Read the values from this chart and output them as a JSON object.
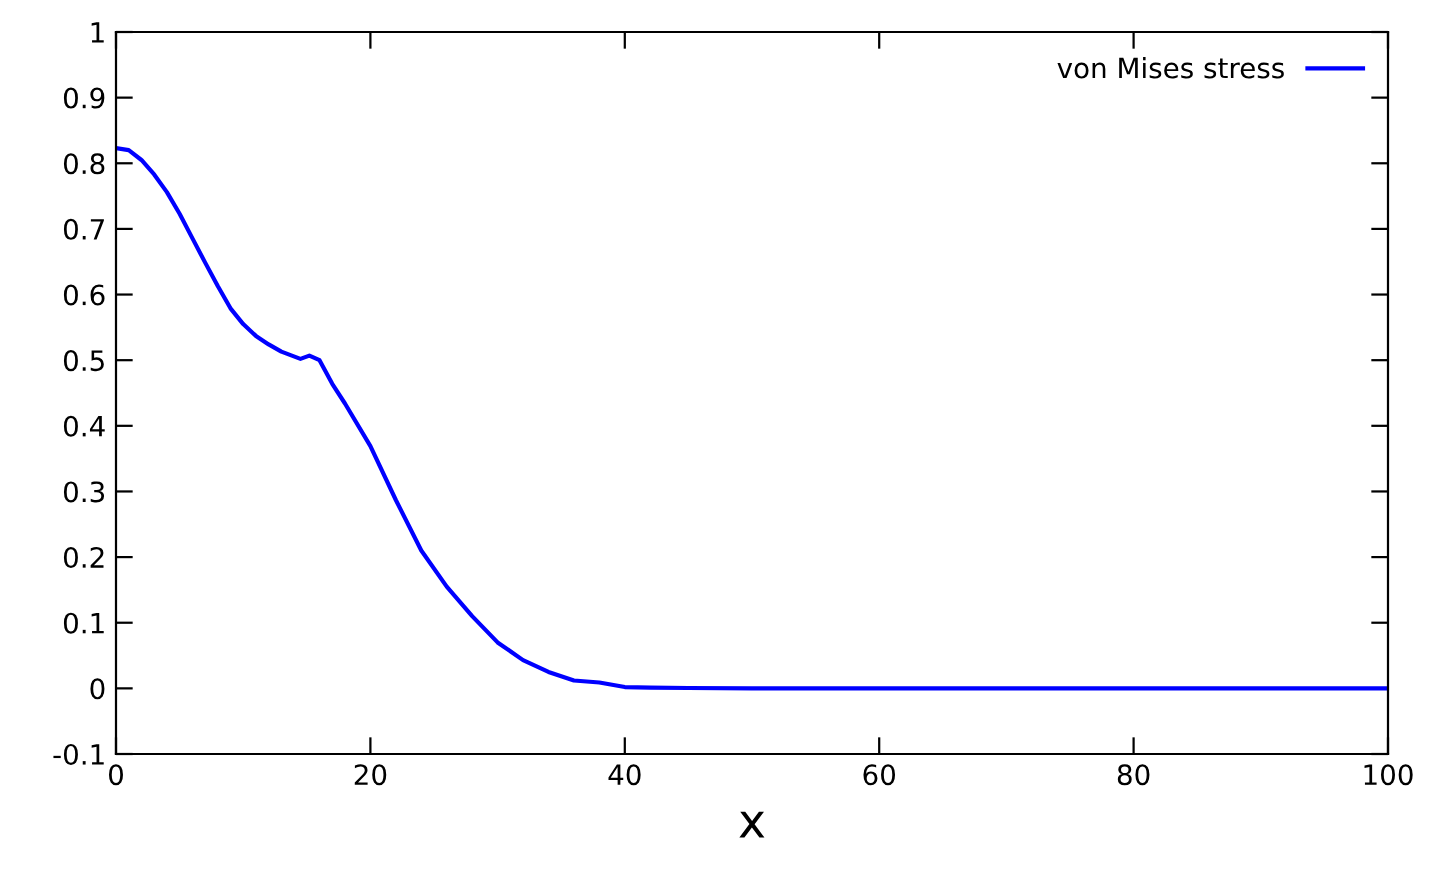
{
  "chart_data": {
    "type": "line",
    "xlabel": "x",
    "xlim": [
      0,
      100
    ],
    "ylim": [
      -0.1,
      1
    ],
    "xticks": [
      0,
      20,
      40,
      60,
      80,
      100
    ],
    "yticks": [
      -0.1,
      0,
      0.1,
      0.2,
      0.3,
      0.4,
      0.5,
      0.6,
      0.7,
      0.8,
      0.9,
      1
    ],
    "grid": false,
    "legend": "top right",
    "marker": "none",
    "line_style": "solid",
    "series": [
      {
        "name": "von Mises stress",
        "color": "#0000ff",
        "x": [
          0,
          1,
          2,
          3,
          4,
          5,
          6,
          7,
          8,
          9,
          10,
          11,
          12,
          13,
          14.5,
          15.2,
          16,
          17,
          18,
          20,
          22,
          24,
          26,
          28,
          30,
          32,
          34,
          36,
          38,
          40,
          42,
          45,
          50,
          60,
          80,
          100
        ],
        "values": [
          0.823,
          0.82,
          0.805,
          0.783,
          0.756,
          0.723,
          0.686,
          0.649,
          0.613,
          0.579,
          0.555,
          0.537,
          0.524,
          0.513,
          0.502,
          0.507,
          0.5,
          0.464,
          0.434,
          0.369,
          0.287,
          0.21,
          0.155,
          0.11,
          0.07,
          0.043,
          0.025,
          0.012,
          0.009,
          0.002,
          0.001,
          0.0005,
          0,
          0,
          0,
          0
        ]
      }
    ]
  }
}
